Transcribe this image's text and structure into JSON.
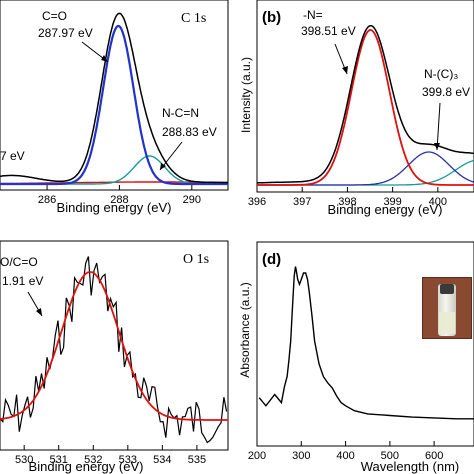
{
  "colors": {
    "total": "#000000",
    "fit_main": "#2233cc",
    "fit_secondary": "#159a9a",
    "fit_red": "#dd1111",
    "fit_navy": "#2b2fa8"
  },
  "chart_data": [
    {
      "panel": "",
      "type": "line",
      "title": "C 1s",
      "xlabel": "Binding energy (eV)",
      "ylabel": "",
      "xlim": [
        284.7,
        291.0
      ],
      "x_ticks": [
        286,
        288,
        290
      ],
      "annotations": [
        {
          "text": "C=O",
          "peak": 287.97
        },
        {
          "text": "287.97 eV",
          "peak": 287.97
        },
        {
          "text": "N-C=N",
          "peak": 288.83
        },
        {
          "text": "288.83 eV",
          "peak": 288.83
        },
        {
          "text": "7 eV",
          "peak": 284.9
        }
      ],
      "series": [
        {
          "role": "envelope",
          "color_key": "total"
        },
        {
          "role": "component",
          "center": 287.97,
          "color_key": "fit_main"
        },
        {
          "role": "component",
          "center": 288.83,
          "color_key": "fit_secondary"
        },
        {
          "role": "background",
          "color_key": "fit_red"
        }
      ]
    },
    {
      "panel": "(b)",
      "type": "line",
      "title": "",
      "xlabel": "Binding energy (eV)",
      "ylabel": "Intensity (a.u.)",
      "xlim": [
        396,
        400.8
      ],
      "x_ticks": [
        396,
        397,
        398,
        399,
        400
      ],
      "annotations": [
        {
          "text": "-N=",
          "peak": 398.51
        },
        {
          "text": "398.51 eV",
          "peak": 398.51
        },
        {
          "text": "N-(C)₃",
          "peak": 399.8
        },
        {
          "text": "399.8 eV",
          "peak": 399.8
        }
      ],
      "series": [
        {
          "role": "envelope",
          "color_key": "total"
        },
        {
          "role": "component",
          "center": 398.51,
          "color_key": "fit_red"
        },
        {
          "role": "component",
          "center": 399.8,
          "color_key": "fit_navy"
        },
        {
          "role": "component",
          "center": 400.9,
          "color_key": "fit_secondary"
        }
      ]
    },
    {
      "panel": "",
      "type": "line",
      "title": "O 1s",
      "xlabel": "Binding energy (eV)",
      "ylabel": "",
      "xlim": [
        529.3,
        535.9
      ],
      "x_ticks": [
        530,
        531,
        532,
        533,
        534,
        535
      ],
      "annotations": [
        {
          "text": "O/C=O",
          "peak": 531.91
        },
        {
          "text": "1.91 eV",
          "peak": 531.91
        }
      ],
      "series": [
        {
          "role": "raw",
          "color_key": "total"
        },
        {
          "role": "fit",
          "center": 531.91,
          "color_key": "fit_red"
        }
      ]
    },
    {
      "panel": "(d)",
      "type": "line",
      "title": "",
      "xlabel": "Wavelength (nm)",
      "ylabel": "Absorbance (a.u.)",
      "xlim": [
        200,
        690
      ],
      "x_ticks": [
        200,
        300,
        400,
        500,
        600
      ],
      "peaks_nm": [
        289,
        312
      ],
      "series": [
        {
          "role": "absorbance",
          "color_key": "total",
          "x": [
            205,
            220,
            240,
            255,
            262,
            268,
            272,
            276,
            280,
            284,
            287,
            289,
            292,
            296,
            300,
            305,
            310,
            314,
            318,
            324,
            330,
            340,
            350,
            360,
            370,
            380,
            390,
            400,
            420,
            450,
            500,
            550,
            600,
            650,
            690
          ],
          "y": [
            0.15,
            0.1,
            0.17,
            0.12,
            0.22,
            0.28,
            0.38,
            0.5,
            0.7,
            0.9,
            0.96,
            0.93,
            0.88,
            0.85,
            0.88,
            0.92,
            0.92,
            0.88,
            0.8,
            0.66,
            0.5,
            0.36,
            0.28,
            0.24,
            0.21,
            0.16,
            0.12,
            0.1,
            0.07,
            0.05,
            0.04,
            0.03,
            0.025,
            0.02,
            0.02
          ]
        }
      ]
    }
  ]
}
